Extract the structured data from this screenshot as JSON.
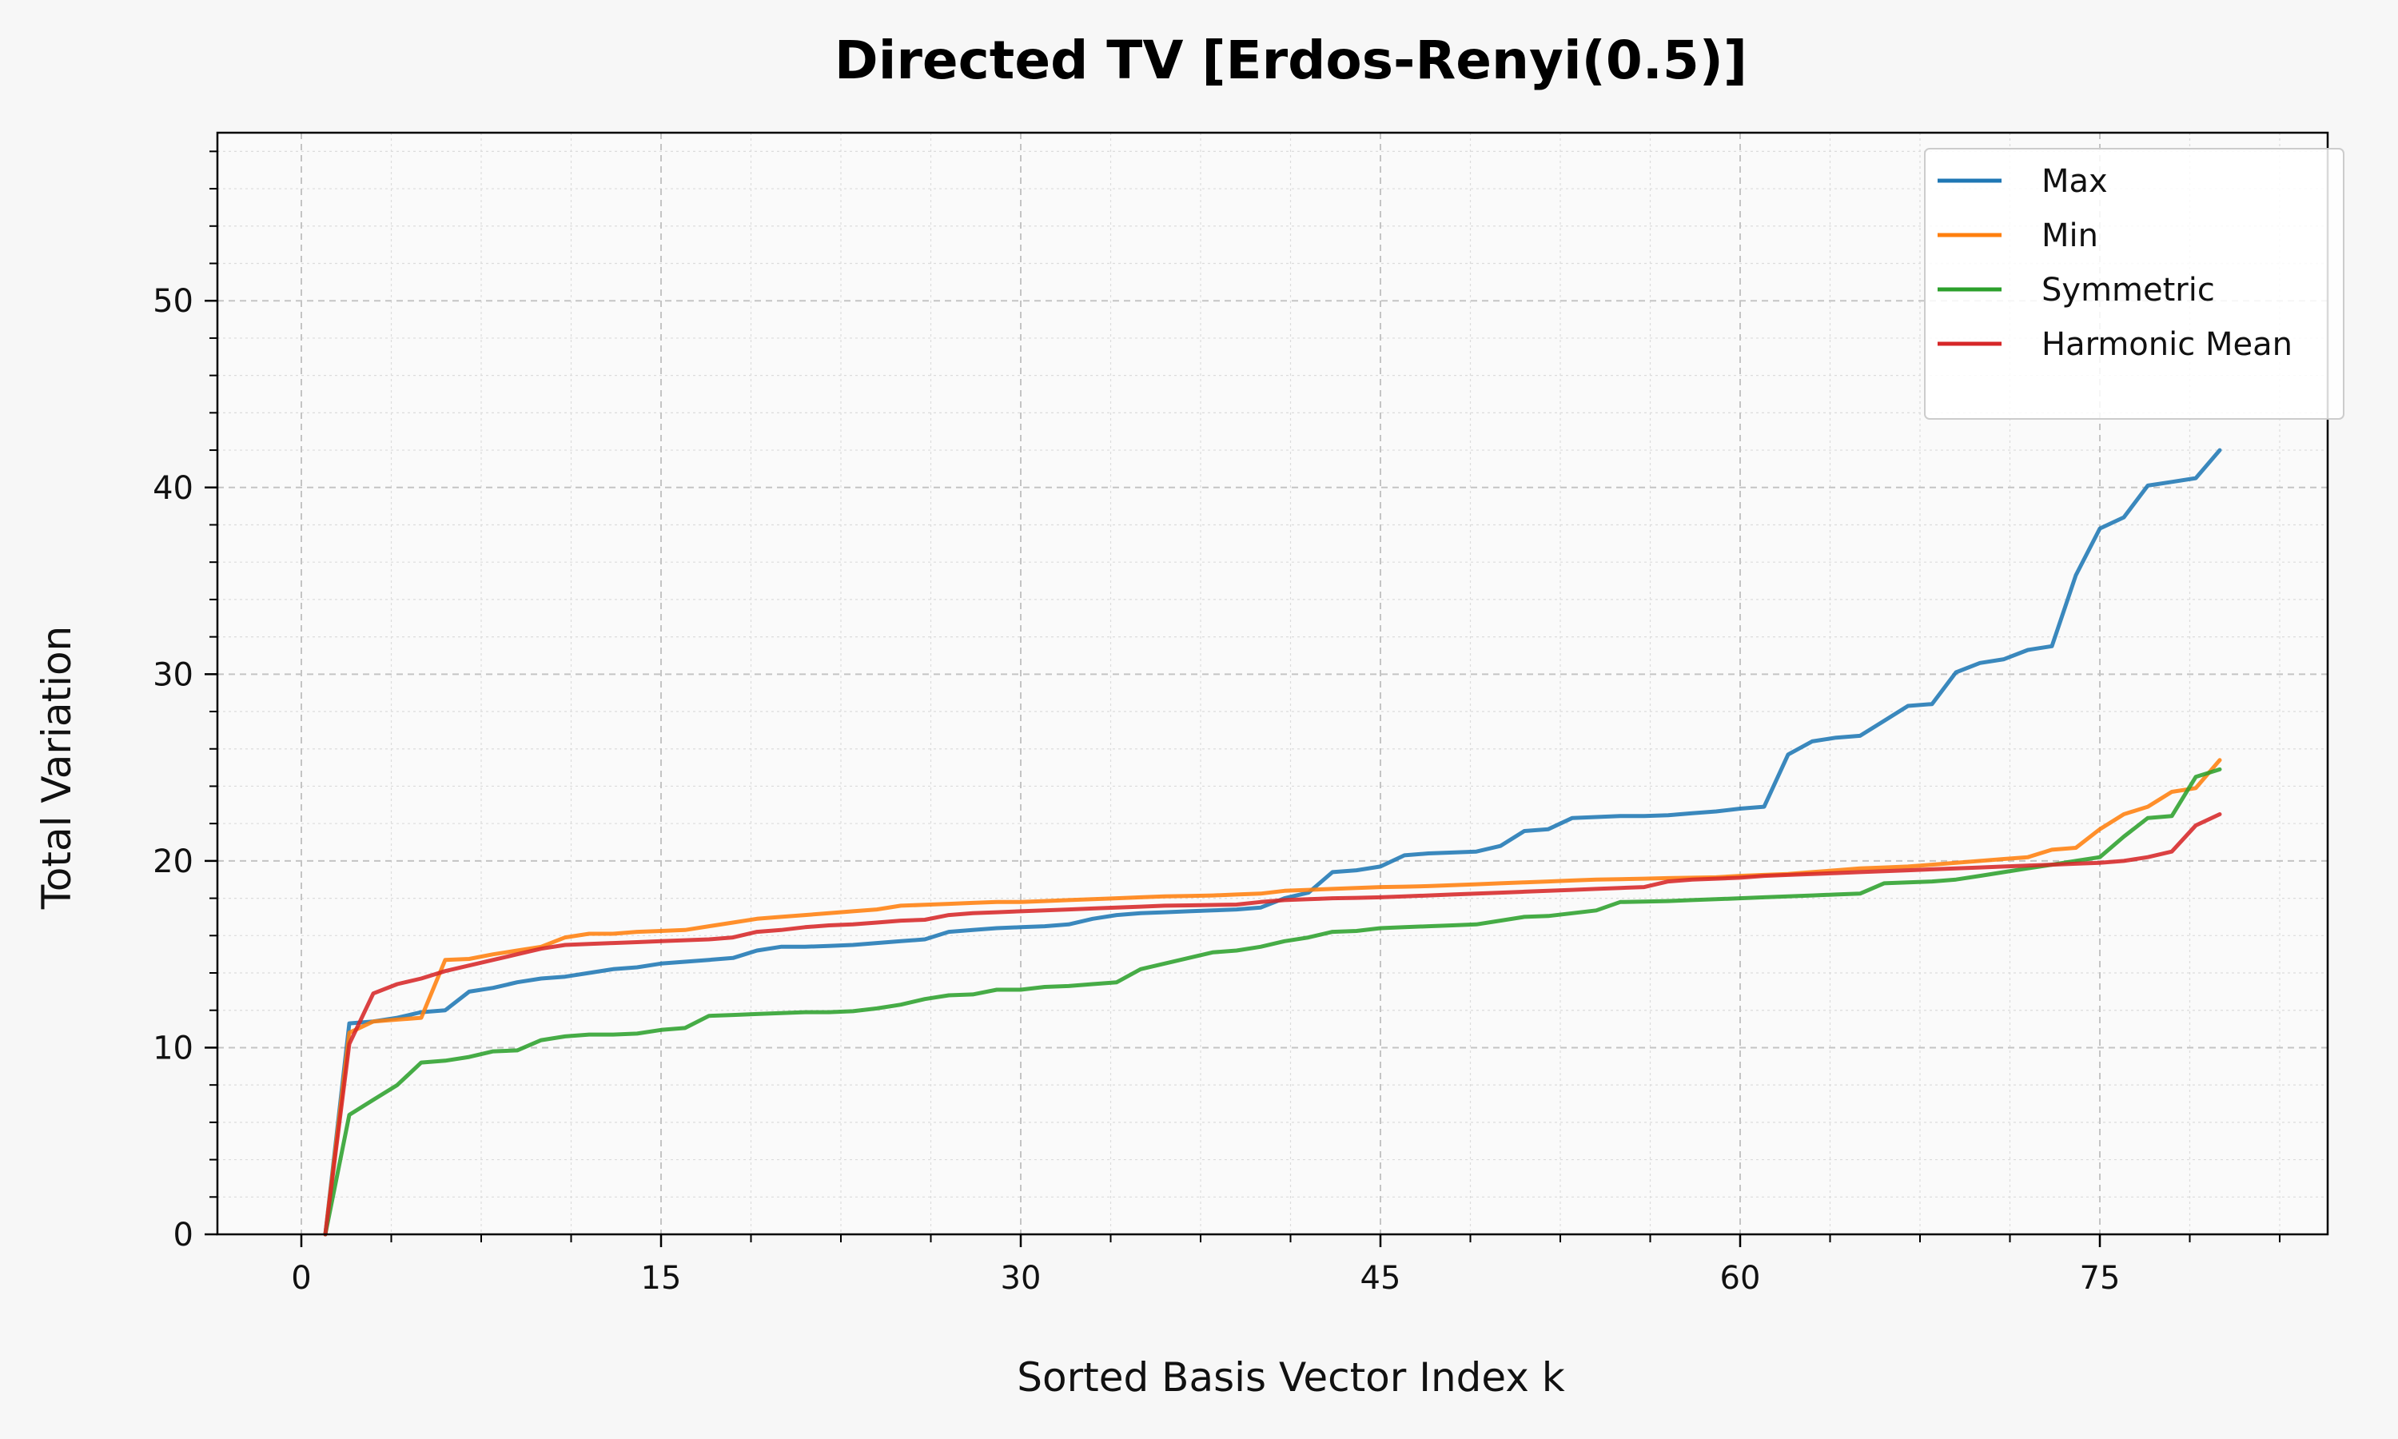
{
  "chart_data": {
    "type": "line",
    "title": "Directed TV [Erdos-Renyi(0.5)]",
    "xlabel": "Sorted Basis Vector Index k",
    "ylabel": "Total Variation",
    "xlim": [
      -3.5,
      84.5
    ],
    "ylim": [
      0,
      59
    ],
    "xticks": [
      0,
      15,
      30,
      45,
      60,
      75
    ],
    "yticks": [
      0,
      10,
      20,
      30,
      40,
      50
    ],
    "grid": true,
    "legend_position": "top-right",
    "series": [
      {
        "name": "Max",
        "color": "#1f77b4",
        "points": [
          [
            1,
            0
          ],
          [
            2,
            11.3
          ],
          [
            3,
            11.4
          ],
          [
            4,
            11.6
          ],
          [
            5,
            11.9
          ],
          [
            6,
            12.0
          ],
          [
            7,
            13.0
          ],
          [
            8,
            13.2
          ],
          [
            9,
            13.5
          ],
          [
            10,
            13.7
          ],
          [
            11,
            13.8
          ],
          [
            12,
            14.0
          ],
          [
            13,
            14.2
          ],
          [
            14,
            14.3
          ],
          [
            15,
            14.5
          ],
          [
            16,
            14.6
          ],
          [
            17,
            14.7
          ],
          [
            18,
            14.8
          ],
          [
            19,
            15.2
          ],
          [
            20,
            15.4
          ],
          [
            21,
            15.4
          ],
          [
            22,
            15.45
          ],
          [
            23,
            15.5
          ],
          [
            24,
            15.6
          ],
          [
            25,
            15.7
          ],
          [
            26,
            15.8
          ],
          [
            27,
            16.2
          ],
          [
            28,
            16.3
          ],
          [
            29,
            16.4
          ],
          [
            30,
            16.45
          ],
          [
            31,
            16.5
          ],
          [
            32,
            16.6
          ],
          [
            33,
            16.9
          ],
          [
            34,
            17.1
          ],
          [
            35,
            17.2
          ],
          [
            36,
            17.25
          ],
          [
            37,
            17.3
          ],
          [
            38,
            17.35
          ],
          [
            39,
            17.4
          ],
          [
            40,
            17.5
          ],
          [
            41,
            18.0
          ],
          [
            42,
            18.3
          ],
          [
            43,
            19.4
          ],
          [
            44,
            19.5
          ],
          [
            45,
            19.7
          ],
          [
            46,
            20.3
          ],
          [
            47,
            20.4
          ],
          [
            48,
            20.45
          ],
          [
            49,
            20.5
          ],
          [
            50,
            20.8
          ],
          [
            51,
            21.6
          ],
          [
            52,
            21.7
          ],
          [
            53,
            22.3
          ],
          [
            54,
            22.35
          ],
          [
            55,
            22.4
          ],
          [
            56,
            22.4
          ],
          [
            57,
            22.45
          ],
          [
            58,
            22.55
          ],
          [
            59,
            22.65
          ],
          [
            60,
            22.8
          ],
          [
            61,
            22.9
          ],
          [
            62,
            25.7
          ],
          [
            63,
            26.4
          ],
          [
            64,
            26.6
          ],
          [
            65,
            26.7
          ],
          [
            66,
            27.5
          ],
          [
            67,
            28.3
          ],
          [
            68,
            28.4
          ],
          [
            69,
            30.1
          ],
          [
            70,
            30.6
          ],
          [
            71,
            30.8
          ],
          [
            72,
            31.3
          ],
          [
            73,
            31.5
          ],
          [
            74,
            35.3
          ],
          [
            75,
            37.8
          ],
          [
            76,
            38.4
          ],
          [
            77,
            40.1
          ],
          [
            78,
            40.3
          ],
          [
            79,
            40.5
          ],
          [
            80,
            42.0
          ]
        ]
      },
      {
        "name": "Min",
        "color": "#ff7f0e",
        "points": [
          [
            1,
            0
          ],
          [
            2,
            10.8
          ],
          [
            3,
            11.4
          ],
          [
            4,
            11.5
          ],
          [
            5,
            11.6
          ],
          [
            6,
            14.7
          ],
          [
            7,
            14.75
          ],
          [
            8,
            15.0
          ],
          [
            9,
            15.2
          ],
          [
            10,
            15.4
          ],
          [
            11,
            15.9
          ],
          [
            12,
            16.1
          ],
          [
            13,
            16.1
          ],
          [
            14,
            16.2
          ],
          [
            15,
            16.25
          ],
          [
            16,
            16.3
          ],
          [
            17,
            16.5
          ],
          [
            18,
            16.7
          ],
          [
            19,
            16.9
          ],
          [
            20,
            17.0
          ],
          [
            21,
            17.1
          ],
          [
            22,
            17.2
          ],
          [
            23,
            17.3
          ],
          [
            24,
            17.4
          ],
          [
            25,
            17.6
          ],
          [
            26,
            17.65
          ],
          [
            27,
            17.7
          ],
          [
            28,
            17.75
          ],
          [
            29,
            17.8
          ],
          [
            30,
            17.8
          ],
          [
            31,
            17.85
          ],
          [
            32,
            17.9
          ],
          [
            33,
            17.95
          ],
          [
            34,
            18.0
          ],
          [
            35,
            18.05
          ],
          [
            36,
            18.1
          ],
          [
            37,
            18.12
          ],
          [
            38,
            18.15
          ],
          [
            39,
            18.2
          ],
          [
            40,
            18.25
          ],
          [
            41,
            18.4
          ],
          [
            42,
            18.45
          ],
          [
            43,
            18.5
          ],
          [
            44,
            18.55
          ],
          [
            45,
            18.6
          ],
          [
            46,
            18.62
          ],
          [
            47,
            18.65
          ],
          [
            48,
            18.7
          ],
          [
            49,
            18.75
          ],
          [
            50,
            18.8
          ],
          [
            51,
            18.85
          ],
          [
            52,
            18.9
          ],
          [
            53,
            18.95
          ],
          [
            54,
            19.0
          ],
          [
            55,
            19.02
          ],
          [
            56,
            19.05
          ],
          [
            57,
            19.08
          ],
          [
            58,
            19.1
          ],
          [
            59,
            19.12
          ],
          [
            60,
            19.2
          ],
          [
            61,
            19.25
          ],
          [
            62,
            19.3
          ],
          [
            63,
            19.4
          ],
          [
            64,
            19.5
          ],
          [
            65,
            19.6
          ],
          [
            66,
            19.65
          ],
          [
            67,
            19.7
          ],
          [
            68,
            19.8
          ],
          [
            69,
            19.9
          ],
          [
            70,
            20.0
          ],
          [
            71,
            20.1
          ],
          [
            72,
            20.2
          ],
          [
            73,
            20.6
          ],
          [
            74,
            20.7
          ],
          [
            75,
            21.7
          ],
          [
            76,
            22.5
          ],
          [
            77,
            22.9
          ],
          [
            78,
            23.7
          ],
          [
            79,
            23.9
          ],
          [
            80,
            25.4
          ]
        ]
      },
      {
        "name": "Symmetric",
        "color": "#2ca02c",
        "points": [
          [
            1,
            0
          ],
          [
            2,
            6.4
          ],
          [
            3,
            7.2
          ],
          [
            4,
            8.0
          ],
          [
            5,
            9.2
          ],
          [
            6,
            9.3
          ],
          [
            7,
            9.5
          ],
          [
            8,
            9.8
          ],
          [
            9,
            9.85
          ],
          [
            10,
            10.4
          ],
          [
            11,
            10.6
          ],
          [
            12,
            10.7
          ],
          [
            13,
            10.7
          ],
          [
            14,
            10.75
          ],
          [
            15,
            10.95
          ],
          [
            16,
            11.05
          ],
          [
            17,
            11.7
          ],
          [
            18,
            11.75
          ],
          [
            19,
            11.8
          ],
          [
            20,
            11.85
          ],
          [
            21,
            11.9
          ],
          [
            22,
            11.9
          ],
          [
            23,
            11.95
          ],
          [
            24,
            12.1
          ],
          [
            25,
            12.3
          ],
          [
            26,
            12.6
          ],
          [
            27,
            12.8
          ],
          [
            28,
            12.85
          ],
          [
            29,
            13.1
          ],
          [
            30,
            13.1
          ],
          [
            31,
            13.25
          ],
          [
            32,
            13.3
          ],
          [
            33,
            13.4
          ],
          [
            34,
            13.5
          ],
          [
            35,
            14.2
          ],
          [
            36,
            14.5
          ],
          [
            37,
            14.8
          ],
          [
            38,
            15.1
          ],
          [
            39,
            15.2
          ],
          [
            40,
            15.4
          ],
          [
            41,
            15.7
          ],
          [
            42,
            15.9
          ],
          [
            43,
            16.2
          ],
          [
            44,
            16.25
          ],
          [
            45,
            16.4
          ],
          [
            46,
            16.45
          ],
          [
            47,
            16.5
          ],
          [
            48,
            16.55
          ],
          [
            49,
            16.6
          ],
          [
            50,
            16.8
          ],
          [
            51,
            17.0
          ],
          [
            52,
            17.05
          ],
          [
            53,
            17.2
          ],
          [
            54,
            17.35
          ],
          [
            55,
            17.8
          ],
          [
            56,
            17.82
          ],
          [
            57,
            17.85
          ],
          [
            58,
            17.9
          ],
          [
            59,
            17.95
          ],
          [
            60,
            18.0
          ],
          [
            61,
            18.05
          ],
          [
            62,
            18.1
          ],
          [
            63,
            18.15
          ],
          [
            64,
            18.2
          ],
          [
            65,
            18.25
          ],
          [
            66,
            18.8
          ],
          [
            67,
            18.85
          ],
          [
            68,
            18.9
          ],
          [
            69,
            19.0
          ],
          [
            70,
            19.2
          ],
          [
            71,
            19.4
          ],
          [
            72,
            19.6
          ],
          [
            73,
            19.8
          ],
          [
            74,
            20.0
          ],
          [
            75,
            20.2
          ],
          [
            76,
            21.3
          ],
          [
            77,
            22.3
          ],
          [
            78,
            22.4
          ],
          [
            79,
            24.5
          ],
          [
            80,
            24.9
          ]
        ]
      },
      {
        "name": "Harmonic Mean",
        "color": "#d62728",
        "points": [
          [
            1,
            0
          ],
          [
            2,
            10.2
          ],
          [
            3,
            12.9
          ],
          [
            4,
            13.4
          ],
          [
            5,
            13.7
          ],
          [
            6,
            14.1
          ],
          [
            7,
            14.4
          ],
          [
            8,
            14.7
          ],
          [
            9,
            15.0
          ],
          [
            10,
            15.3
          ],
          [
            11,
            15.5
          ],
          [
            12,
            15.55
          ],
          [
            13,
            15.6
          ],
          [
            14,
            15.65
          ],
          [
            15,
            15.7
          ],
          [
            16,
            15.75
          ],
          [
            17,
            15.8
          ],
          [
            18,
            15.9
          ],
          [
            19,
            16.2
          ],
          [
            20,
            16.3
          ],
          [
            21,
            16.45
          ],
          [
            22,
            16.55
          ],
          [
            23,
            16.6
          ],
          [
            24,
            16.7
          ],
          [
            25,
            16.8
          ],
          [
            26,
            16.85
          ],
          [
            27,
            17.1
          ],
          [
            28,
            17.2
          ],
          [
            29,
            17.25
          ],
          [
            30,
            17.3
          ],
          [
            31,
            17.35
          ],
          [
            32,
            17.4
          ],
          [
            33,
            17.45
          ],
          [
            34,
            17.5
          ],
          [
            35,
            17.55
          ],
          [
            36,
            17.6
          ],
          [
            37,
            17.62
          ],
          [
            38,
            17.64
          ],
          [
            39,
            17.66
          ],
          [
            40,
            17.8
          ],
          [
            41,
            17.9
          ],
          [
            42,
            17.95
          ],
          [
            43,
            18.0
          ],
          [
            44,
            18.02
          ],
          [
            45,
            18.05
          ],
          [
            46,
            18.1
          ],
          [
            47,
            18.15
          ],
          [
            48,
            18.2
          ],
          [
            49,
            18.25
          ],
          [
            50,
            18.3
          ],
          [
            51,
            18.35
          ],
          [
            52,
            18.4
          ],
          [
            53,
            18.45
          ],
          [
            54,
            18.5
          ],
          [
            55,
            18.55
          ],
          [
            56,
            18.6
          ],
          [
            57,
            18.9
          ],
          [
            58,
            19.0
          ],
          [
            59,
            19.05
          ],
          [
            60,
            19.1
          ],
          [
            61,
            19.2
          ],
          [
            62,
            19.25
          ],
          [
            63,
            19.3
          ],
          [
            64,
            19.35
          ],
          [
            65,
            19.4
          ],
          [
            66,
            19.45
          ],
          [
            67,
            19.5
          ],
          [
            68,
            19.55
          ],
          [
            69,
            19.6
          ],
          [
            70,
            19.65
          ],
          [
            71,
            19.7
          ],
          [
            72,
            19.75
          ],
          [
            73,
            19.8
          ],
          [
            74,
            19.85
          ],
          [
            75,
            19.9
          ],
          [
            76,
            20.0
          ],
          [
            77,
            20.2
          ],
          [
            78,
            20.5
          ],
          [
            79,
            21.9
          ],
          [
            80,
            22.5
          ]
        ]
      }
    ]
  }
}
